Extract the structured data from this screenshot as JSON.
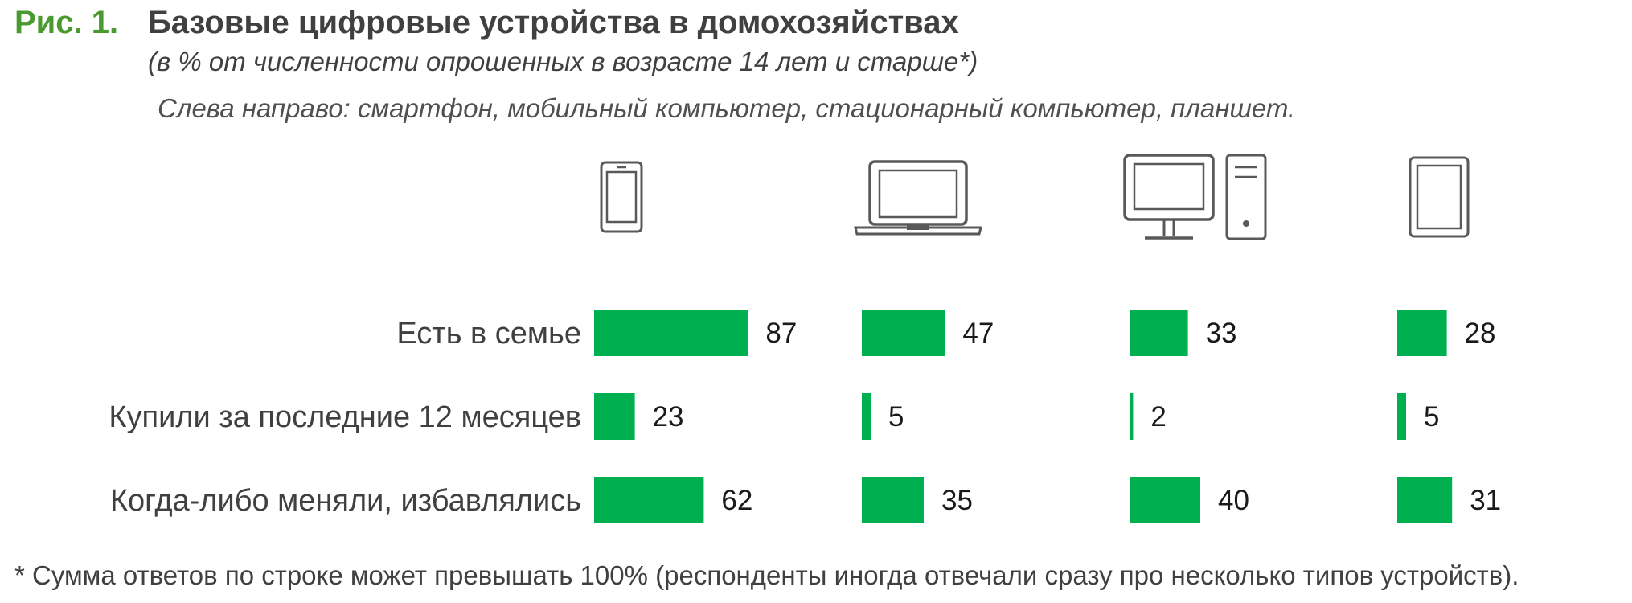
{
  "figure_number": "Рис. 1.",
  "title": "Базовые цифровые устройства в домохозяйствах",
  "subtitle": "(в % от численности опрошенных в возрасте 14 лет и старше*)",
  "note": "Слева направо: смартфон, мобильный компьютер, стационарный компьютер, планшет.",
  "footnote": "* Сумма ответов по строке может превышать 100% (респонденты иногда отвечали сразу про несколько типов устройств).",
  "colors": {
    "bar": "#00b050",
    "figure_number": "#4a9a2f",
    "icon": "#595959"
  },
  "icons": [
    "smartphone-icon",
    "laptop-icon",
    "desktop-computer-icon",
    "tablet-icon"
  ],
  "chart_data": {
    "type": "bar",
    "orientation": "horizontal",
    "title": "Базовые цифровые устройства в домохозяйствах",
    "categories": [
      "Есть в семье",
      "Купили за последние 12 месяцев",
      "Когда-либо меняли, избавлялись"
    ],
    "series": [
      {
        "values": [
          87,
          23,
          62
        ]
      },
      {
        "values": [
          47,
          5,
          35
        ]
      },
      {
        "values": [
          33,
          2,
          40
        ]
      },
      {
        "values": [
          28,
          5,
          31
        ]
      }
    ],
    "xlim": [
      0,
      100
    ],
    "grid": false
  }
}
